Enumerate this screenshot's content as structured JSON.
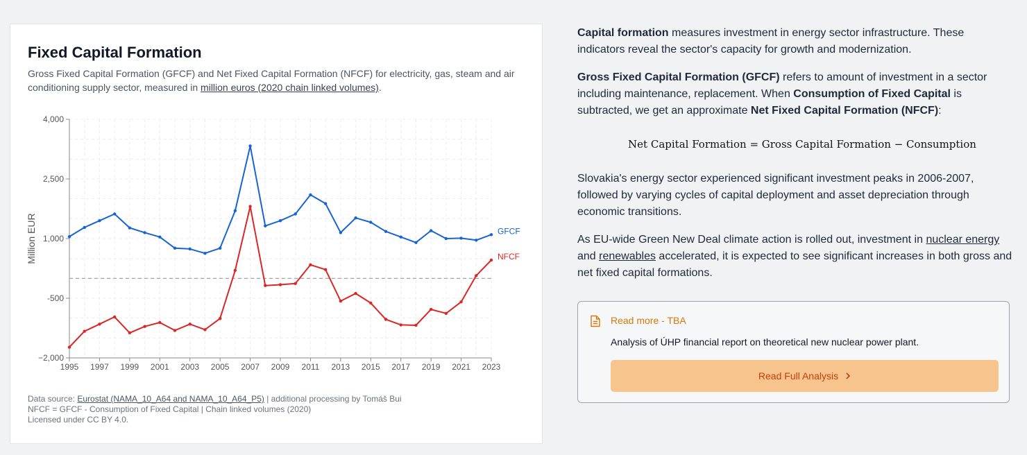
{
  "card": {
    "title": "Fixed Capital Formation",
    "subtitle_pre": "Gross Fixed Capital Formation (GFCF) and Net Fixed Capital Formation (NFCF) for electricity, gas, steam and air conditioning supply sector, measured in ",
    "subtitle_link": "million euros (2020 chain linked volumes)",
    "subtitle_post": "."
  },
  "chart_data": {
    "type": "line",
    "title": "",
    "xlabel": "",
    "ylabel": "Million EUR",
    "ylim": [
      -2000,
      4000
    ],
    "yticks": [
      -2000,
      -500,
      1000,
      2500,
      4000
    ],
    "ytick_labels": [
      "−2,000",
      "-500",
      "1,000",
      "2,500",
      "4,000"
    ],
    "xticks": [
      1995,
      1997,
      1999,
      2001,
      2003,
      2005,
      2007,
      2009,
      2011,
      2013,
      2015,
      2017,
      2019,
      2021,
      2023
    ],
    "reference_line": 0,
    "grid": true,
    "x": [
      1995,
      1996,
      1997,
      1998,
      1999,
      2000,
      2001,
      2002,
      2003,
      2004,
      2005,
      2006,
      2007,
      2008,
      2009,
      2010,
      2011,
      2012,
      2013,
      2014,
      2015,
      2016,
      2017,
      2018,
      2019,
      2020,
      2021,
      2022,
      2023
    ],
    "series": [
      {
        "name": "GFCF",
        "color": "#1763d5",
        "values": [
          1050,
          1280,
          1450,
          1620,
          1270,
          1150,
          1040,
          760,
          740,
          630,
          760,
          1700,
          3330,
          1320,
          1450,
          1620,
          2100,
          1880,
          1150,
          1520,
          1410,
          1180,
          1040,
          900,
          1200,
          1000,
          1010,
          960,
          1100
        ]
      },
      {
        "name": "NFCF",
        "color": "#dc2626",
        "values": [
          -1730,
          -1330,
          -1150,
          -970,
          -1370,
          -1210,
          -1110,
          -1310,
          -1150,
          -1290,
          -1010,
          200,
          1810,
          -180,
          -160,
          -130,
          340,
          220,
          -570,
          -380,
          -620,
          -1030,
          -1170,
          -1180,
          -780,
          -880,
          -590,
          70,
          460
        ]
      }
    ]
  },
  "footnote": {
    "line1_pre": "Data source: ",
    "line1_link": "Eurostat (NAMA_10_A64 and NAMA_10_A64_P5)",
    "line1_post": " | additional processing by Tomáš Bui",
    "line2": "NFCF = GFCF - Consumption of Fixed Capital | Chain linked volumes (2020)",
    "line3": "Licensed under CC BY 4.0."
  },
  "prose": {
    "p1_b": "Capital formation",
    "p1": " measures investment in energy sector infrastructure. These indicators reveal the sector's capacity for growth and modernization.",
    "p2_b1": "Gross Fixed Capital Formation (GFCF)",
    "p2_1": " refers to amount of investment in a sector including maintenance, replacement. When ",
    "p2_b2": "Consumption of Fixed Capital",
    "p2_2": " is subtracted, we get an approximate ",
    "p2_b3": "Net Fixed Capital Formation (NFCF)",
    "p2_3": ":",
    "formula": "Net Capital Formation = Gross Capital Formation − Consumption",
    "p3": "Slovakia's energy sector experienced significant investment peaks in 2006-2007, followed by varying cycles of capital deployment and asset depreciation through economic transitions.",
    "p4_1": "As EU-wide Green New Deal climate action is rolled out, investment in ",
    "p4_link1": "nuclear energy",
    "p4_2": " and ",
    "p4_link2": "renewables",
    "p4_3": " accelerated, it is expected to see significant increases in both gross and net fixed capital formations."
  },
  "callout": {
    "icon": "document-icon",
    "read_more": "Read more - TBA",
    "description": "Analysis of ÚHP financial report on theoretical new nuclear power plant.",
    "button_label": "Read Full Analysis",
    "accent": "#d97706",
    "button_bg": "#f8c48d"
  }
}
